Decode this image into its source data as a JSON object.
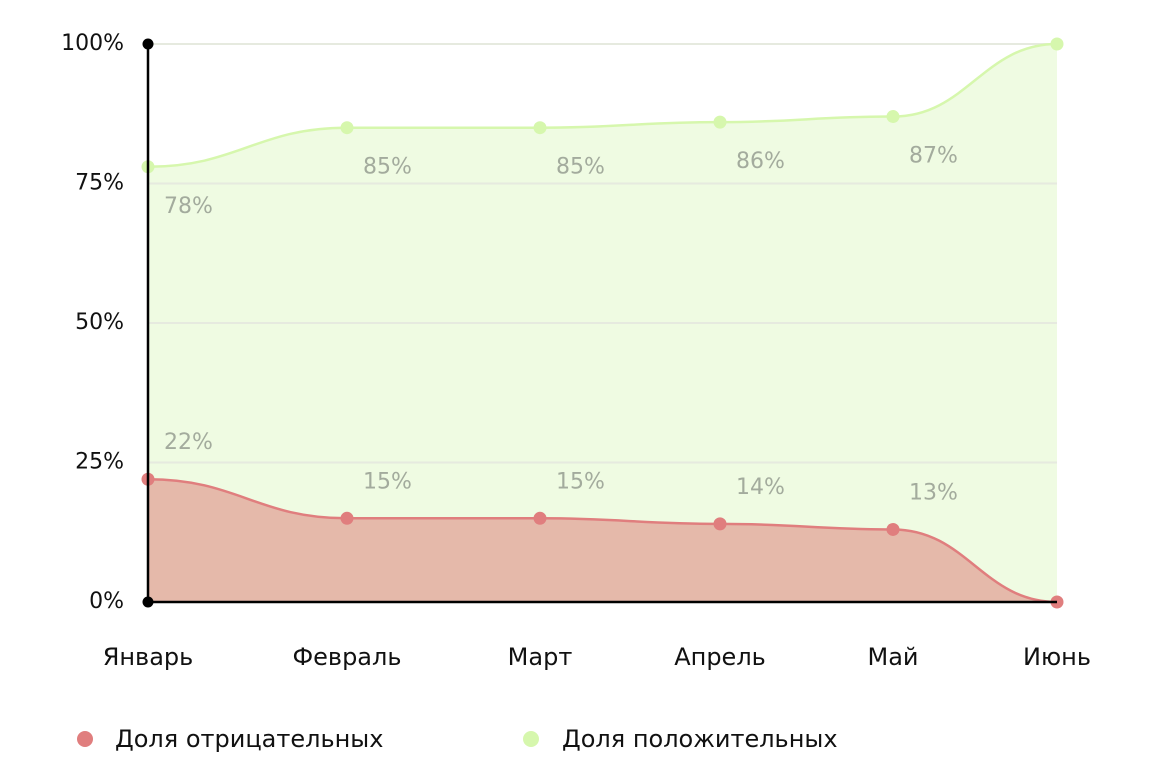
{
  "chart_data": {
    "type": "area",
    "categories": [
      "Январь",
      "Февраль",
      "Март",
      "Апрель",
      "Май",
      "Июнь"
    ],
    "series": [
      {
        "name": "Доля отрицательных",
        "color": "#e07e7e",
        "values": [
          22,
          15,
          15,
          14,
          13,
          0
        ],
        "value_labels": [
          "22%",
          "15%",
          "15%",
          "14%",
          "13%",
          null
        ]
      },
      {
        "name": "Доля положительных",
        "color": "#d6f7ad",
        "values": [
          78,
          85,
          85,
          86,
          87,
          100
        ],
        "value_labels": [
          "78%",
          "85%",
          "85%",
          "86%",
          "87%",
          null
        ]
      }
    ],
    "ylim": [
      0,
      100
    ],
    "yticks": [
      {
        "value": 0,
        "label": "0%"
      },
      {
        "value": 25,
        "label": "25%"
      },
      {
        "value": 50,
        "label": "50%"
      },
      {
        "value": 75,
        "label": "75%"
      },
      {
        "value": 100,
        "label": "100%"
      }
    ],
    "grid": true
  }
}
